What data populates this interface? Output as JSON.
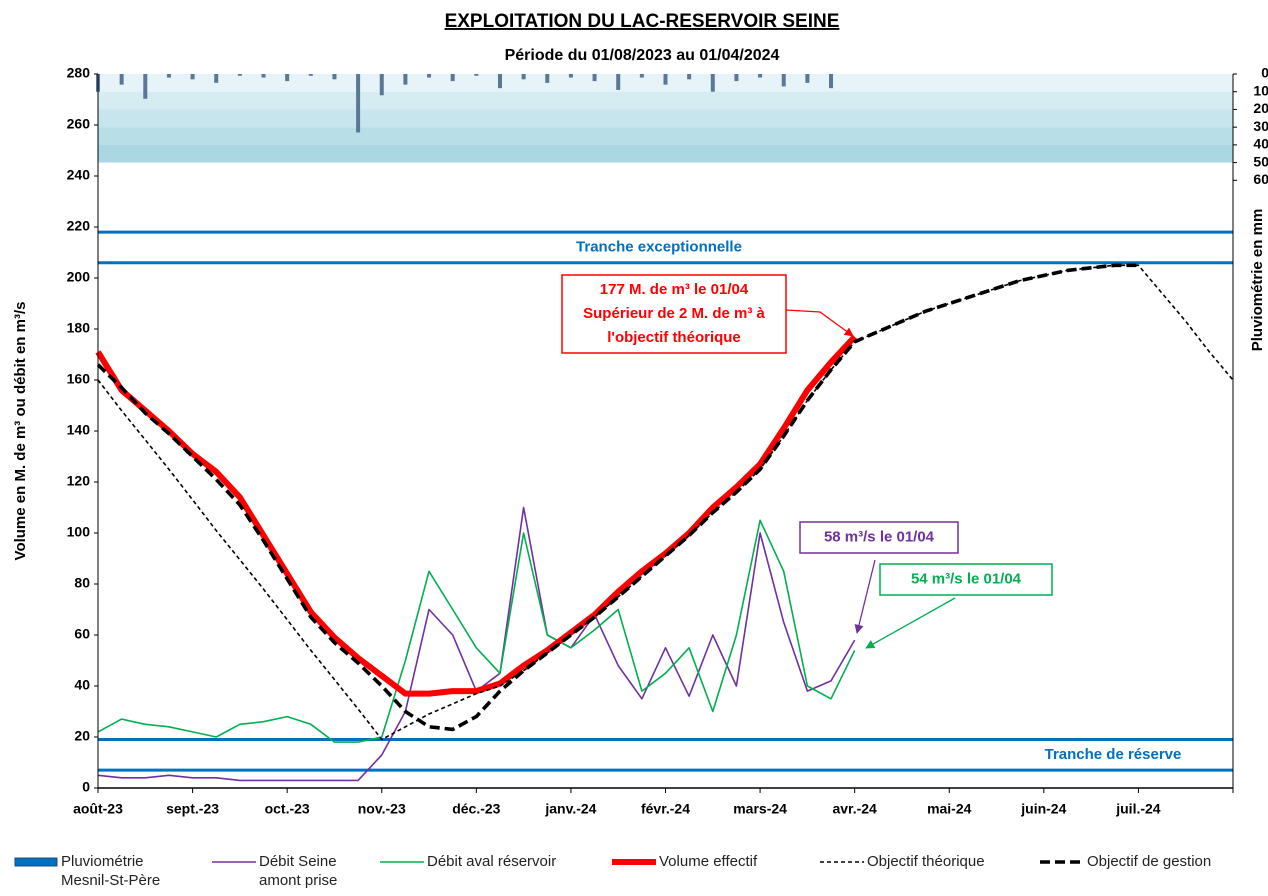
{
  "chart_data": {
    "type": "line",
    "title": "EXPLOITATION  DU  LAC-RESERVOIR  SEINE",
    "subtitle": "Période du 01/08/2023 au 01/04/2024",
    "y_label": "Volume en M. de m³ ou débit en m³/s",
    "y2_label": "Pluviométrie en mm",
    "x": [
      "août-23",
      null,
      null,
      null,
      "sept.-23",
      null,
      null,
      null,
      "oct.-23",
      null,
      null,
      null,
      "nov.-23",
      null,
      null,
      null,
      "déc.-23",
      null,
      null,
      null,
      "janv.-24",
      null,
      null,
      null,
      "févr.-24",
      null,
      null,
      null,
      "mars-24",
      null,
      null,
      null,
      "avr.-24",
      null,
      null,
      null,
      "mai-24",
      null,
      null,
      null,
      "juin-24",
      null,
      null,
      null,
      "juil.-24",
      null,
      null,
      null,
      null
    ],
    "ylim": [
      0,
      280
    ],
    "yticks": [
      0,
      20,
      40,
      60,
      80,
      100,
      120,
      140,
      160,
      180,
      200,
      220,
      240,
      260,
      280
    ],
    "y2lim": [
      403,
      0
    ],
    "y2ticks": [
      0,
      10,
      20,
      30,
      40,
      50,
      60
    ],
    "series": [
      {
        "name": "Pluviométrie Mesnil-St-Père",
        "type": "bar",
        "axis": "y2",
        "color": "#5a7896",
        "values": [
          10,
          6,
          14,
          2,
          3,
          5,
          1,
          2,
          4,
          1,
          3,
          33,
          12,
          6,
          2,
          4,
          1,
          8,
          3,
          5,
          2,
          4,
          9,
          2,
          6,
          3,
          10,
          4,
          2,
          7,
          5,
          8,
          null,
          null,
          null,
          null,
          null,
          null,
          null,
          null,
          null,
          null,
          null,
          null,
          null,
          null,
          null,
          null,
          null
        ]
      },
      {
        "name": "Débit Seine amont prise",
        "color": "#7030a0",
        "line_weight": "thin",
        "line_style": "solid",
        "values": [
          5,
          4,
          4,
          5,
          4,
          4,
          3,
          3,
          3,
          3,
          3,
          3,
          13,
          30,
          70,
          60,
          38,
          45,
          110,
          60,
          55,
          68,
          48,
          35,
          55,
          36,
          60,
          40,
          100,
          65,
          38,
          42,
          58,
          null,
          null,
          null,
          null,
          null,
          null,
          null,
          null,
          null,
          null,
          null,
          null,
          null,
          null,
          null,
          null
        ]
      },
      {
        "name": "Débit aval réservoir",
        "color": "#00b050",
        "line_weight": "thin",
        "line_style": "solid",
        "values": [
          22,
          27,
          25,
          24,
          22,
          20,
          25,
          26,
          28,
          25,
          18,
          18,
          20,
          50,
          85,
          70,
          55,
          45,
          100,
          60,
          55,
          62,
          70,
          38,
          45,
          55,
          30,
          60,
          105,
          85,
          40,
          35,
          54,
          null,
          null,
          null,
          null,
          null,
          null,
          null,
          null,
          null,
          null,
          null,
          null,
          null,
          null,
          null,
          null
        ]
      },
      {
        "name": "Volume effectif",
        "color": "#ff0000",
        "line_weight": "heavy",
        "line_style": "solid",
        "values": [
          171,
          156,
          148,
          140,
          131,
          124,
          114,
          99,
          84,
          69,
          59,
          51,
          44,
          37,
          37,
          38,
          38,
          41,
          48,
          54,
          61,
          68,
          77,
          85,
          92,
          100,
          110,
          118,
          127,
          141,
          156,
          167,
          177,
          null,
          null,
          null,
          null,
          null,
          null,
          null,
          null,
          null,
          null,
          null,
          null,
          null,
          null,
          null,
          null
        ]
      },
      {
        "name": "Objectif théorique",
        "color": "#000000",
        "line_weight": "thin",
        "line_style": "dashed",
        "values": [
          160,
          148,
          136.5,
          125,
          113,
          101,
          89.5,
          78,
          66,
          54,
          42.5,
          31,
          19,
          24,
          29,
          33,
          37,
          40,
          46,
          53,
          60,
          67,
          75,
          83,
          91,
          99,
          108,
          116,
          125,
          138,
          152,
          164,
          175,
          179,
          183,
          187,
          190,
          193,
          196,
          199,
          201,
          203,
          204,
          205,
          205,
          194,
          183,
          171,
          160
        ]
      },
      {
        "name": "Objectif de gestion",
        "color": "#000000",
        "line_weight": "thick",
        "line_style": "dashed",
        "values": [
          166,
          157,
          147,
          139,
          130,
          121,
          111,
          97,
          82,
          67,
          57,
          49,
          40,
          30,
          24,
          23,
          28,
          38,
          46,
          53,
          60,
          67,
          75,
          83,
          91,
          99,
          108,
          116,
          125,
          138,
          152,
          164,
          175,
          179,
          183,
          187,
          190,
          193,
          196,
          199,
          201,
          203,
          204,
          205,
          205,
          null,
          null,
          null,
          null
        ]
      }
    ],
    "reference_bands": [
      {
        "label": "Tranche exceptionnelle",
        "lines": [
          206,
          218
        ],
        "color": "#0070c0"
      },
      {
        "label": "Tranche de réserve",
        "lines": [
          7,
          19
        ],
        "color": "#0070c0"
      }
    ],
    "annotations": [
      {
        "lines": [
          "177 M. de m³ le 01/04",
          "Supérieur de 2 M. de m³ à",
          "l'objectif théorique"
        ],
        "color": "#ff0000"
      },
      {
        "lines": [
          "58 m³/s le 01/04"
        ],
        "color": "#7030a0"
      },
      {
        "lines": [
          "54 m³/s le 01/04"
        ],
        "color": "#00b050"
      }
    ]
  }
}
